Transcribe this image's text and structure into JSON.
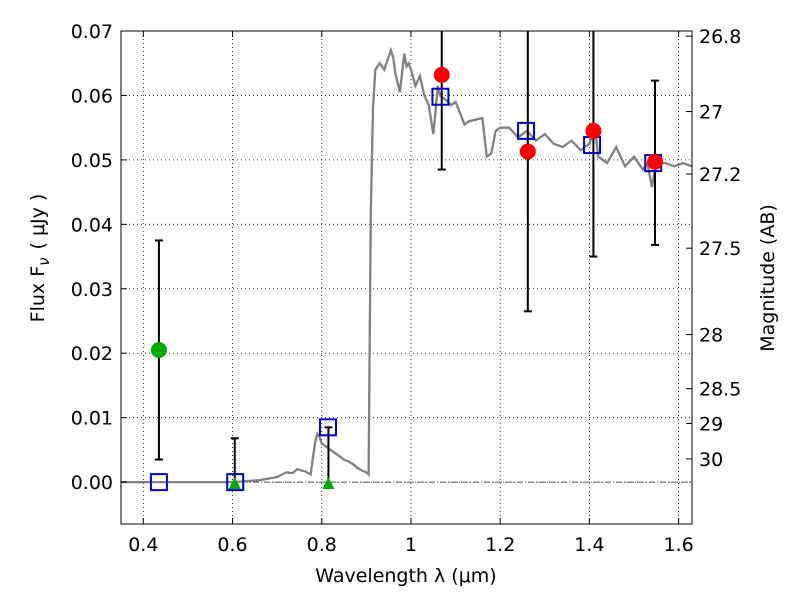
{
  "chart_data": {
    "type": "scatter",
    "xlabel": "Wavelength  λ (μm)",
    "ylabel": "Flux  F",
    "ylabel_subscript": "ν",
    "ylabel_unit": "( μJy )",
    "y2label": "Magnitude (AB)",
    "xlim": [
      0.35,
      1.63
    ],
    "ylim": [
      -0.0065,
      0.07
    ],
    "grid": true,
    "x_ticks": [
      0.4,
      0.6,
      0.8,
      1.0,
      1.2,
      1.4,
      1.6
    ],
    "x_tick_labels": [
      "0.4",
      "0.6",
      "0.8",
      "1",
      "1.2",
      "1.4",
      "1.6"
    ],
    "y_ticks": [
      0.0,
      0.01,
      0.02,
      0.03,
      0.04,
      0.05,
      0.06,
      0.07
    ],
    "y_tick_labels": [
      "0.00",
      "0.01",
      "0.02",
      "0.03",
      "0.04",
      "0.05",
      "0.06",
      "0.07"
    ],
    "y2_ticks": [
      {
        "label": "26.8",
        "flux": 0.0692
      },
      {
        "label": "27",
        "flux": 0.0575
      },
      {
        "label": "27.2",
        "flux": 0.0478
      },
      {
        "label": "27.5",
        "flux": 0.0363
      },
      {
        "label": "28",
        "flux": 0.0229
      },
      {
        "label": "28.5",
        "flux": 0.0145
      },
      {
        "label": "29",
        "flux": 0.0091
      },
      {
        "label": "30",
        "flux": 0.0036
      }
    ],
    "colors": {
      "model": "#808080",
      "model_flux_marker": "#0000cc",
      "observed_marker": "#ff0000",
      "low_sn_marker": "#00aa00",
      "error_bar": "#000000",
      "zero_line": "#555555"
    },
    "series": [
      {
        "kind": "model_spectrum",
        "x": [
          0.35,
          0.6,
          0.66,
          0.7,
          0.72,
          0.735,
          0.745,
          0.755,
          0.765,
          0.775,
          0.785,
          0.79,
          0.795,
          0.8,
          0.81,
          0.82,
          0.83,
          0.84,
          0.85,
          0.86,
          0.87,
          0.88,
          0.89,
          0.9,
          0.905,
          0.91,
          0.915,
          0.92,
          0.93,
          0.94,
          0.95,
          0.955,
          0.96,
          0.965,
          0.975,
          0.985,
          0.99,
          0.995,
          1.0,
          1.01,
          1.02,
          1.03,
          1.04,
          1.05,
          1.055,
          1.06,
          1.065,
          1.075,
          1.09,
          1.1,
          1.12,
          1.13,
          1.16,
          1.17,
          1.18,
          1.19,
          1.2,
          1.22,
          1.24,
          1.26,
          1.28,
          1.3,
          1.32,
          1.34,
          1.36,
          1.38,
          1.39,
          1.4,
          1.41,
          1.415,
          1.42,
          1.44,
          1.46,
          1.48,
          1.5,
          1.52,
          1.53,
          1.54,
          1.55,
          1.57,
          1.59,
          1.61,
          1.63
        ],
        "y": [
          0.0,
          0.0,
          0.0003,
          0.0008,
          0.0015,
          0.0014,
          0.002,
          0.0018,
          0.0016,
          0.0012,
          0.0062,
          0.0075,
          0.007,
          0.006,
          0.0055,
          0.005,
          0.0045,
          0.004,
          0.0035,
          0.0032,
          0.0028,
          0.0022,
          0.0018,
          0.0015,
          0.0012,
          0.042,
          0.058,
          0.064,
          0.065,
          0.064,
          0.066,
          0.067,
          0.066,
          0.0635,
          0.0605,
          0.0665,
          0.0645,
          0.065,
          0.064,
          0.0615,
          0.063,
          0.06,
          0.0585,
          0.054,
          0.0575,
          0.0615,
          0.06,
          0.0595,
          0.0585,
          0.059,
          0.0555,
          0.056,
          0.0565,
          0.0505,
          0.051,
          0.0545,
          0.055,
          0.055,
          0.0535,
          0.0545,
          0.053,
          0.054,
          0.0525,
          0.052,
          0.053,
          0.0515,
          0.052,
          0.0525,
          0.0545,
          0.0535,
          0.0505,
          0.0495,
          0.052,
          0.049,
          0.0505,
          0.0485,
          0.0495,
          0.0458,
          0.0495,
          0.0495,
          0.049,
          0.0495,
          0.049
        ]
      },
      {
        "kind": "model_flux_in_band",
        "marker": "open-square",
        "x": [
          0.435,
          0.606,
          0.814,
          1.066,
          1.258,
          1.406,
          1.543
        ],
        "y": [
          0.0,
          0.0,
          0.0085,
          0.0598,
          0.0545,
          0.0523,
          0.0495
        ]
      },
      {
        "kind": "observed_flux",
        "marker": "filled-circle",
        "x": [
          1.069,
          1.262,
          1.409,
          1.547
        ],
        "y": [
          0.0632,
          0.0513,
          0.0545,
          0.0497
        ],
        "yerr_low": [
          0.0485,
          0.0265,
          0.035,
          0.0368
        ],
        "yerr_high": [
          0.072,
          0.072,
          0.072,
          0.0623
        ]
      },
      {
        "kind": "low_significance_flux",
        "marker": "filled-circle",
        "x": [
          0.435
        ],
        "y": [
          0.0205
        ],
        "yerr_low": [
          0.0035
        ],
        "yerr_high": [
          0.0375
        ]
      },
      {
        "kind": "upper_limit",
        "marker": "triangle-up",
        "x": [
          0.605,
          0.815
        ],
        "y": [
          -0.0003,
          -0.0003
        ],
        "yerr_low": [
          -0.0005,
          -0.0005
        ],
        "yerr_high": [
          0.0068,
          0.0085
        ]
      }
    ]
  }
}
